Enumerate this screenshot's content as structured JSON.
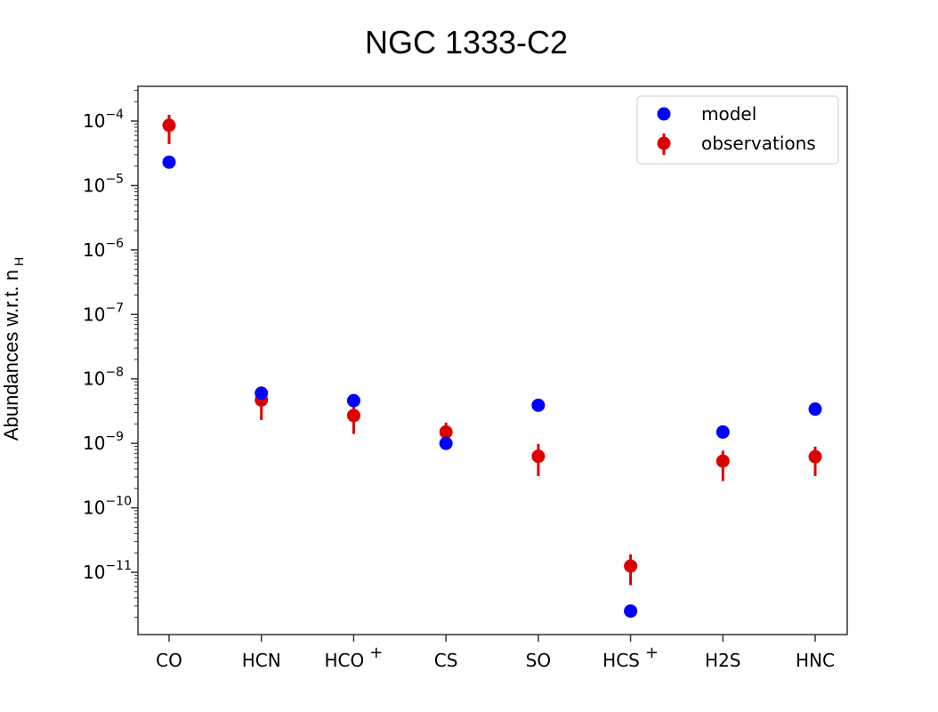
{
  "chart_data": {
    "type": "scatter",
    "title": "NGC 1333-C2",
    "ylabel": "Abundances w.r.t. n",
    "ylabel_subscript": "H",
    "yscale": "log",
    "ylim": [
      1e-12,
      0.0001
    ],
    "categories": [
      "CO",
      "HCN",
      "HCO",
      "CS",
      "SO",
      "HCS",
      "H2S",
      "HNC"
    ],
    "category_superscripts": [
      "",
      "",
      "+",
      "",
      "",
      "+",
      "",
      ""
    ],
    "y_tick_labels": [
      {
        "value": 0.0001,
        "base": "10",
        "exp": "−4"
      },
      {
        "value": 1e-05,
        "base": "10",
        "exp": "−5"
      },
      {
        "value": 1e-06,
        "base": "10",
        "exp": "−6"
      },
      {
        "value": 1e-07,
        "base": "10",
        "exp": "−7"
      },
      {
        "value": 1e-08,
        "base": "10",
        "exp": "−8"
      },
      {
        "value": 1e-09,
        "base": "10",
        "exp": "−9"
      },
      {
        "value": 1e-10,
        "base": "10",
        "exp": "−10"
      },
      {
        "value": 1e-11,
        "base": "10",
        "exp": "−11"
      }
    ],
    "series": [
      {
        "name": "model",
        "color": "#0000ff",
        "values": [
          2.3e-05,
          6e-09,
          4.6e-09,
          1e-09,
          3.9e-09,
          2.5e-12,
          1.5e-09,
          3.4e-09
        ]
      },
      {
        "name": "observations",
        "color": "#dd0000",
        "values": [
          8.6e-05,
          4.7e-09,
          2.7e-09,
          1.5e-09,
          6.3e-10,
          1.25e-11,
          5.3e-10,
          6.2e-10
        ],
        "err_low": [
          4.4e-05,
          2.3e-09,
          1.4e-09,
          1e-09,
          3.1e-10,
          6.3e-12,
          2.6e-10,
          3.1e-10
        ],
        "err_high": [
          0.000125,
          6.2e-09,
          3.7e-09,
          2.1e-09,
          9.8e-10,
          1.9e-11,
          7.7e-10,
          8.9e-10
        ]
      }
    ],
    "legend_position": "top-right",
    "grid": false
  }
}
